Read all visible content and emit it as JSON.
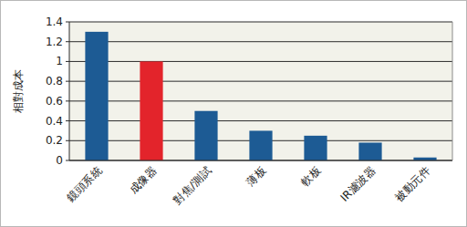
{
  "chart_data": {
    "type": "bar",
    "y_label": "相對成本",
    "categories": [
      "鏡頭系統",
      "成像器",
      "對焦/測試",
      "薄板",
      "軟板",
      "IR濾波器",
      "被動元件"
    ],
    "values": [
      1.3,
      1.0,
      0.5,
      0.3,
      0.25,
      0.18,
      0.03
    ],
    "colors": [
      "#1d5b94",
      "#e3242b",
      "#1d5b94",
      "#1d5b94",
      "#1d5b94",
      "#1d5b94",
      "#1d5b94"
    ],
    "ylim": [
      0,
      1.4
    ],
    "yticks": [
      0,
      0.2,
      0.4,
      0.6,
      0.8,
      1,
      1.2,
      1.4
    ],
    "grid": true
  }
}
